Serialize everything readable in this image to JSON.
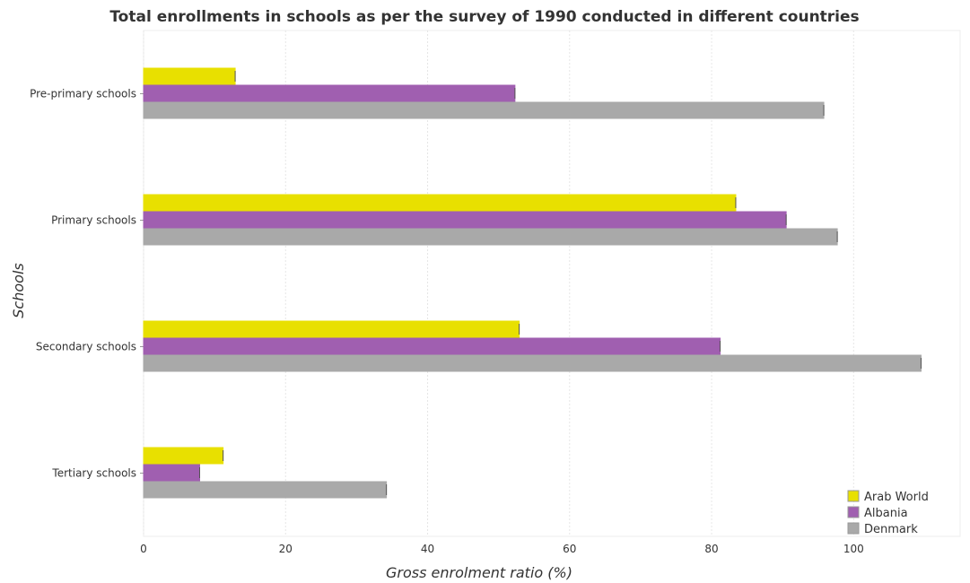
{
  "chart_data": {
    "type": "bar",
    "orientation": "horizontal",
    "title": "Total enrollments in schools as per the survey of 1990 conducted in different countries",
    "xlabel": "Gross enrolment ratio (%)",
    "ylabel": "Schools",
    "xlim": [
      0,
      115
    ],
    "xticks": [
      0,
      20,
      40,
      60,
      80,
      100
    ],
    "categories": [
      "Pre-primary schools",
      "Primary schools",
      "Secondary schools",
      "Tertiary schools"
    ],
    "series": [
      {
        "name": "Arab World",
        "color": "#e8e000",
        "values": [
          12.9,
          83.4,
          52.9,
          11.2
        ]
      },
      {
        "name": "Albania",
        "color": "#a05fb0",
        "values": [
          52.3,
          90.5,
          81.2,
          7.9
        ]
      },
      {
        "name": "Denmark",
        "color": "#a9a9a9",
        "values": [
          95.8,
          97.7,
          109.5,
          34.2
        ]
      }
    ],
    "grid": true,
    "legend_position": "bottom-right"
  }
}
